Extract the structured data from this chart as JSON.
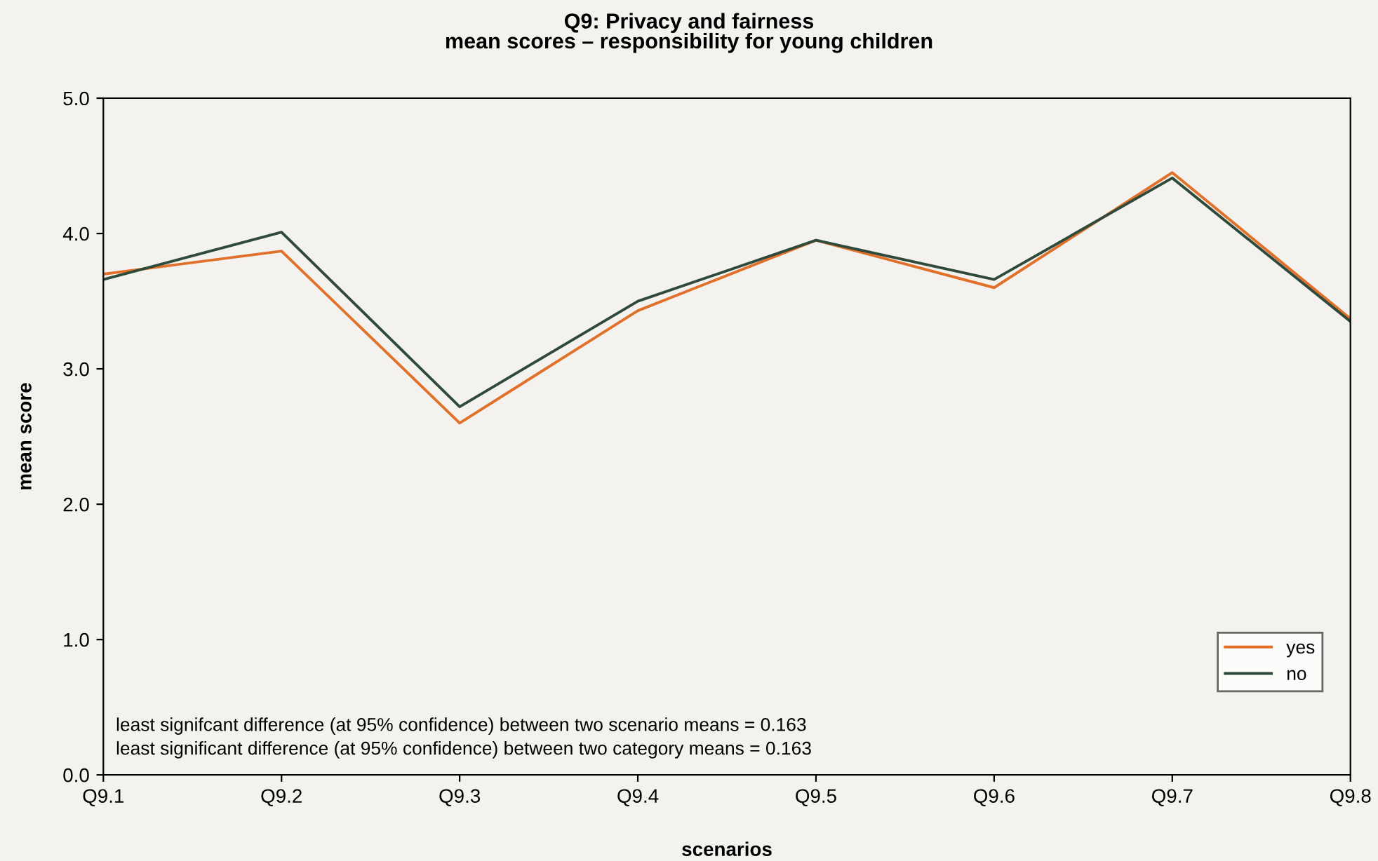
{
  "chart_data": {
    "type": "line",
    "title": "Q9: Privacy and fairness\nmean scores – responsibility for young children",
    "xlabel": "scenarios",
    "ylabel": "mean score",
    "categories": [
      "Q9.1",
      "Q9.2",
      "Q9.3",
      "Q9.4",
      "Q9.5",
      "Q9.6",
      "Q9.7",
      "Q9.8"
    ],
    "series": [
      {
        "name": "yes",
        "color": "#e0702a",
        "values": [
          3.7,
          3.87,
          2.6,
          3.43,
          3.95,
          3.6,
          4.45,
          3.37
        ]
      },
      {
        "name": "no",
        "color": "#2f4a3a",
        "values": [
          3.66,
          4.01,
          2.72,
          3.5,
          3.95,
          3.66,
          4.41,
          3.35
        ]
      }
    ],
    "ylim": [
      0,
      5
    ],
    "yticks": [
      {
        "value": 0,
        "label": "0.0"
      },
      {
        "value": 1,
        "label": "1.0"
      },
      {
        "value": 2,
        "label": "2.0"
      },
      {
        "value": 3,
        "label": "3.0"
      },
      {
        "value": 4,
        "label": "4.0"
      },
      {
        "value": 5,
        "label": "5.0"
      }
    ],
    "annotations": [
      "least signifcant difference (at 95% confidence) between two scenario means = 0.163",
      "least significant difference (at 95% confidence) between two category means = 0.163"
    ],
    "legend": "bottom right",
    "grid": false,
    "marker": "none",
    "line_style": "solid"
  }
}
